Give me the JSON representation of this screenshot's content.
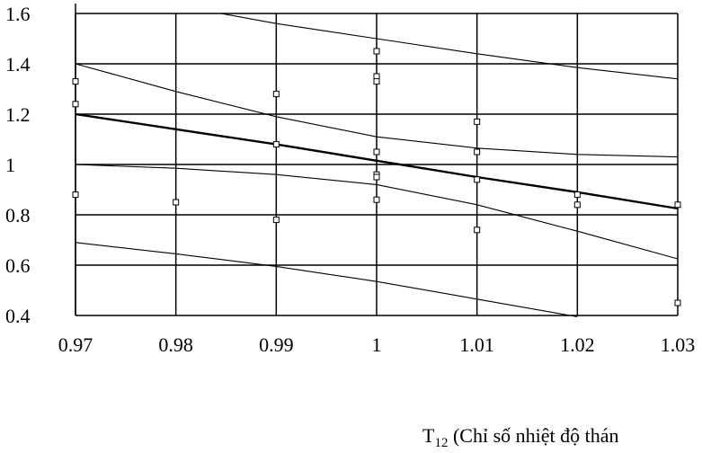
{
  "chart_data": {
    "type": "scatter",
    "title": "",
    "xlabel": "T12 (Chỉ số nhiệt độ thán",
    "xlabel_parts": {
      "main": "T",
      "sub": "12",
      "rest": " (Chỉ số nhiệt độ thán"
    },
    "ylabel": "",
    "xlim": [
      0.97,
      1.03
    ],
    "ylim": [
      0.4,
      1.6
    ],
    "grid": true,
    "x_ticks": [
      "0.97",
      "0.98",
      "0.99",
      "1",
      "1.01",
      "1.02",
      "1.03"
    ],
    "y_ticks": [
      "0.4",
      "0.6",
      "0.8",
      "1",
      "1.2",
      "1.4",
      "1.6"
    ],
    "points": [
      [
        0.97,
        1.33
      ],
      [
        0.97,
        1.24
      ],
      [
        0.97,
        0.88
      ],
      [
        0.98,
        0.85
      ],
      [
        0.99,
        1.28
      ],
      [
        0.99,
        1.08
      ],
      [
        0.99,
        0.78
      ],
      [
        1.0,
        1.45
      ],
      [
        1.0,
        1.35
      ],
      [
        1.0,
        1.33
      ],
      [
        1.0,
        1.05
      ],
      [
        1.0,
        0.96
      ],
      [
        1.0,
        0.95
      ],
      [
        1.0,
        0.86
      ],
      [
        1.01,
        1.17
      ],
      [
        1.01,
        1.05
      ],
      [
        1.01,
        0.94
      ],
      [
        1.01,
        0.74
      ],
      [
        1.02,
        0.88
      ],
      [
        1.02,
        0.84
      ],
      [
        1.03,
        0.84
      ],
      [
        1.03,
        0.45
      ]
    ],
    "series": [
      {
        "role": "fit",
        "bold": true,
        "x": [
          0.97,
          0.98,
          0.99,
          1.0,
          1.01,
          1.02,
          1.03
        ],
        "y": [
          1.2,
          1.14,
          1.08,
          1.015,
          0.95,
          0.89,
          0.825
        ]
      },
      {
        "role": "conf-upper",
        "x": [
          0.97,
          0.98,
          0.99,
          1.0,
          1.01,
          1.02,
          1.03
        ],
        "y": [
          1.4,
          1.29,
          1.19,
          1.11,
          1.065,
          1.04,
          1.03
        ]
      },
      {
        "role": "conf-lower",
        "x": [
          0.97,
          0.98,
          0.99,
          1.0,
          1.01,
          1.02,
          1.03
        ],
        "y": [
          1.0,
          0.985,
          0.96,
          0.92,
          0.84,
          0.735,
          0.625
        ]
      },
      {
        "role": "pred-upper",
        "x": [
          0.9845,
          0.99,
          1.0,
          1.01,
          1.02,
          1.03
        ],
        "y": [
          1.6,
          1.56,
          1.5,
          1.44,
          1.385,
          1.34
        ]
      },
      {
        "role": "pred-lower",
        "x": [
          0.97,
          0.98,
          0.99,
          1.0,
          1.01,
          1.02
        ],
        "y": [
          0.69,
          0.645,
          0.595,
          0.535,
          0.465,
          0.395
        ]
      }
    ]
  }
}
